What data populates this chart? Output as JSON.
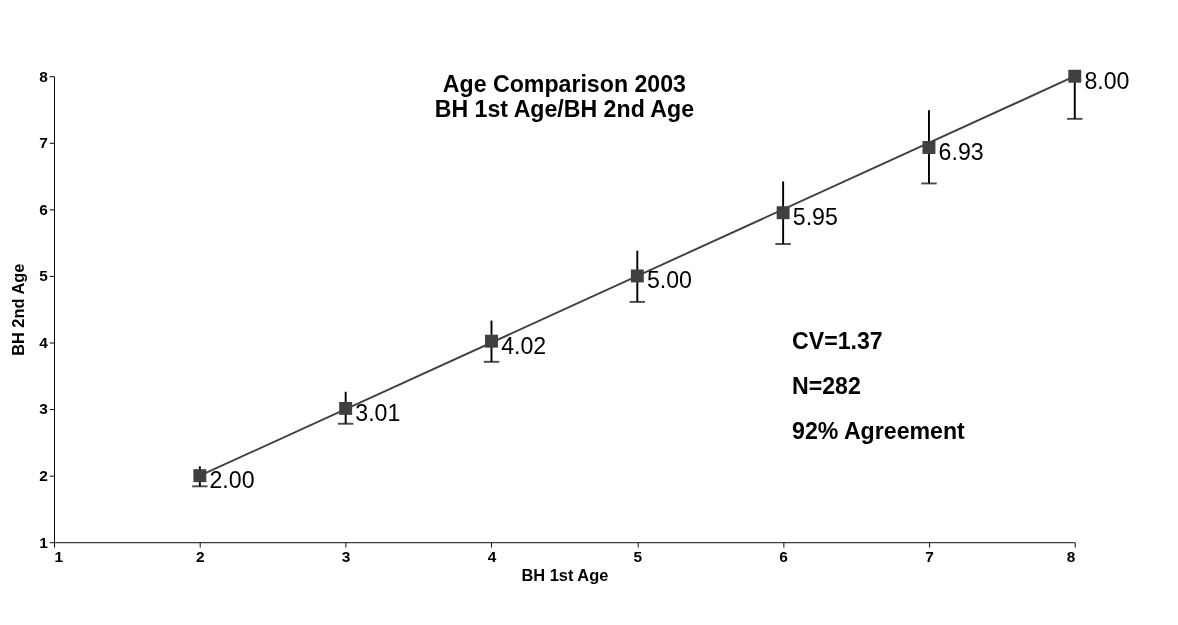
{
  "chart_data": {
    "type": "scatter",
    "title": [
      "Age Comparison 2003",
      "BH 1st Age/BH 2nd Age"
    ],
    "xlabel": "BH 1st Age",
    "ylabel": "BH 2nd Age",
    "xlim": [
      1,
      8
    ],
    "ylim": [
      1,
      8
    ],
    "xticks": [
      1,
      2,
      3,
      4,
      5,
      6,
      7,
      8
    ],
    "yticks": [
      1,
      2,
      3,
      4,
      5,
      6,
      7,
      8
    ],
    "series": [
      {
        "color": "#404040",
        "marker": "square",
        "x": [
          2,
          3,
          4,
          5,
          6,
          7,
          8
        ],
        "values": [
          2.0,
          3.01,
          4.02,
          5.0,
          5.95,
          6.93,
          8.0
        ],
        "value_labels": [
          "2.00",
          "3.01",
          "4.02",
          "5.00",
          "5.95",
          "6.93",
          "8.00"
        ],
        "errors": [
          [
            1.84,
            2.14
          ],
          [
            2.78,
            3.26
          ],
          [
            3.71,
            4.33
          ],
          [
            4.61,
            5.38
          ],
          [
            5.48,
            6.42
          ],
          [
            6.39,
            7.49
          ],
          [
            7.36,
            8.0
          ]
        ]
      },
      {
        "type": "line",
        "color": "#404040",
        "x": [
          2,
          8
        ],
        "values": [
          2,
          8
        ]
      }
    ],
    "annotations": [
      "CV=1.37",
      "N=282",
      "92% Agreement"
    ]
  }
}
